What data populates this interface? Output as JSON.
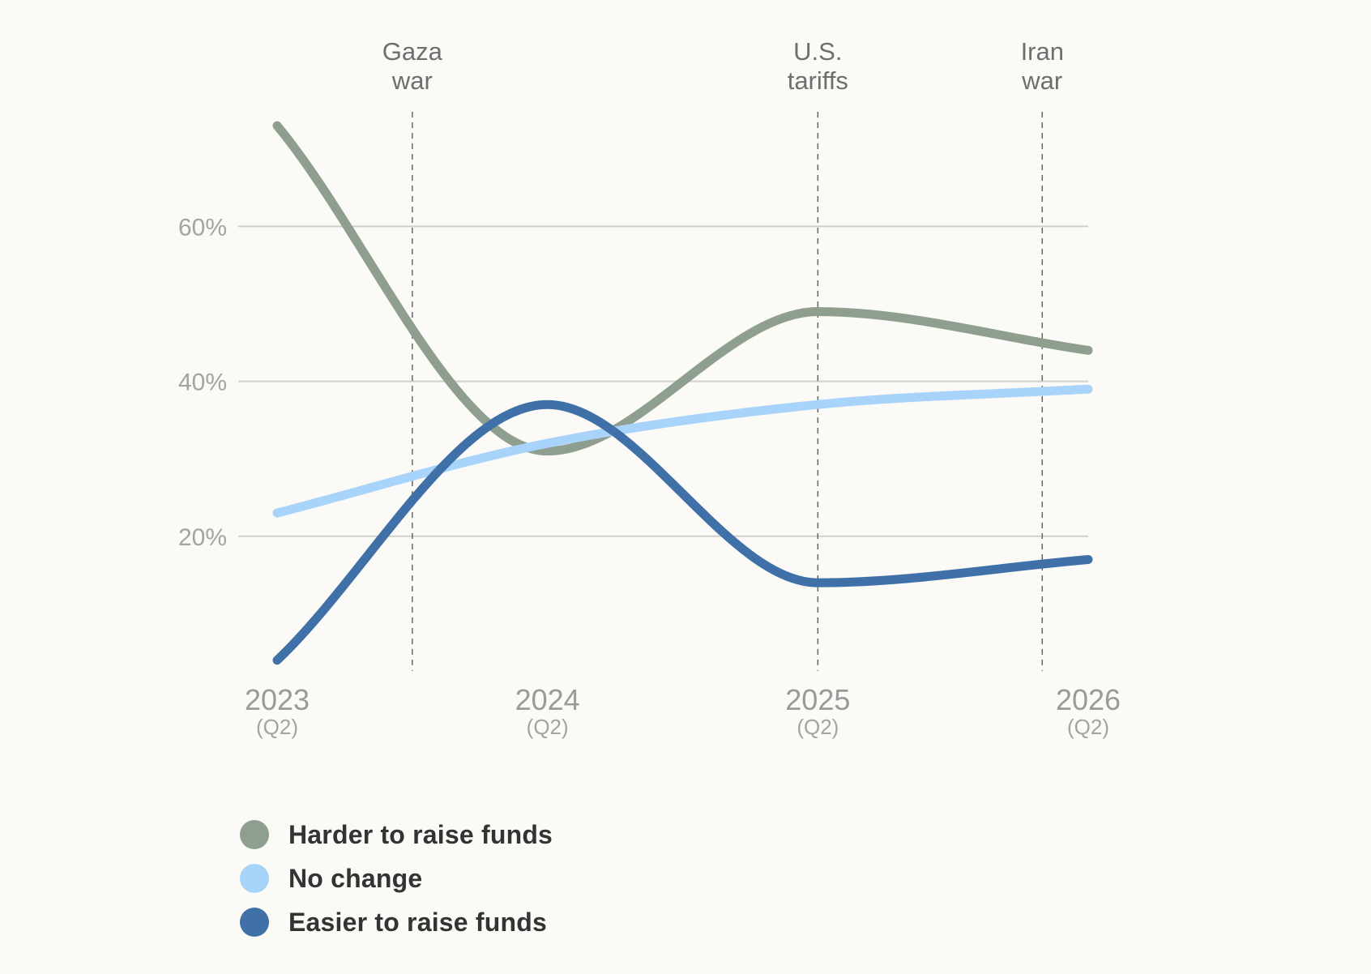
{
  "chart_data": {
    "type": "line",
    "x_labels": [
      {
        "year": "2023",
        "sub": "(Q2)"
      },
      {
        "year": "2024",
        "sub": "(Q2)"
      },
      {
        "year": "2025",
        "sub": "(Q2)"
      },
      {
        "year": "2026",
        "sub": "(Q2)"
      }
    ],
    "x": [
      2023,
      2024,
      2025,
      2026
    ],
    "y_ticks": [
      {
        "value": 20,
        "label": "20%"
      },
      {
        "value": 40,
        "label": "40%"
      },
      {
        "value": 60,
        "label": "60%"
      }
    ],
    "series": [
      {
        "key": "harder",
        "name": "Harder to raise funds",
        "color": "#8f9f8f",
        "values": [
          73,
          31,
          49,
          44
        ]
      },
      {
        "key": "nochange",
        "name": "No change",
        "color": "#a8d4fb",
        "values": [
          23,
          32,
          37,
          39
        ]
      },
      {
        "key": "easier",
        "name": "Easier to raise funds",
        "color": "#4070a8",
        "values": [
          4,
          37,
          14,
          17
        ]
      }
    ],
    "events": [
      {
        "x": 2023.5,
        "lines": [
          "Gaza",
          "war"
        ]
      },
      {
        "x": 2025.0,
        "lines": [
          "U.S.",
          "tariffs"
        ]
      },
      {
        "x": 2025.83,
        "lines": [
          "Iran",
          "war"
        ]
      }
    ],
    "xlim": [
      2023,
      2026
    ],
    "grid": true,
    "legend_position": "bottom"
  }
}
